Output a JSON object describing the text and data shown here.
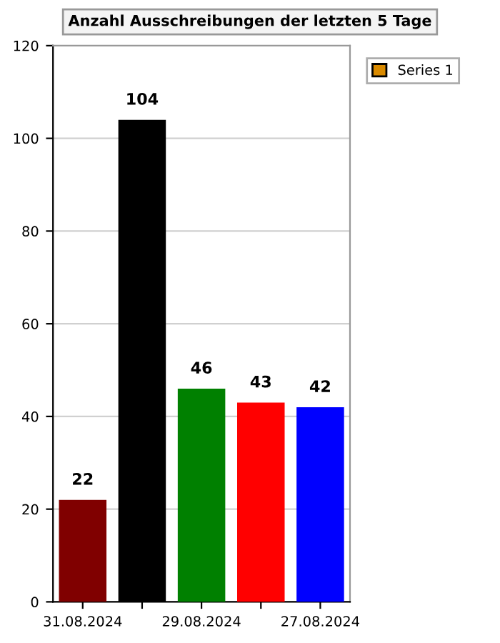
{
  "chart_data": {
    "type": "bar",
    "title": "Anzahl Ausschreibungen der letzten 5 Tage",
    "categories": [
      "31.08.2024",
      null,
      "29.08.2024",
      null,
      "27.08.2024"
    ],
    "series": [
      {
        "name": "Series 1",
        "color": "#d98a00",
        "values": [
          22,
          104,
          46,
          43,
          42
        ],
        "colors": [
          "#800000",
          "#000000",
          "#008000",
          "#ff0000",
          "#0000ff"
        ]
      }
    ],
    "ylim": [
      0,
      120
    ],
    "yticks": [
      0,
      20,
      40,
      60,
      80,
      100,
      120
    ],
    "grid": "y",
    "legend": "top right",
    "data_labels": true
  }
}
